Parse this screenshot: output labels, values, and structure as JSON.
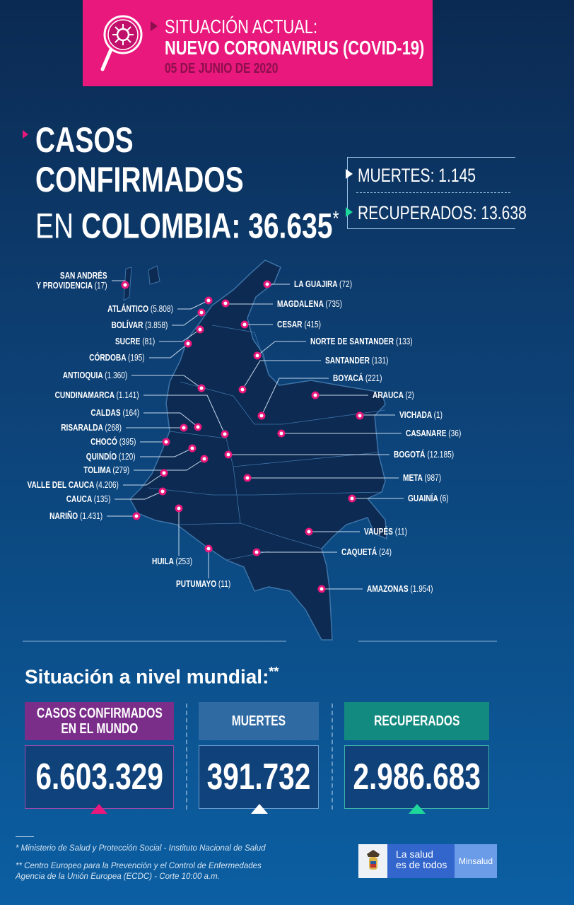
{
  "header": {
    "line1": "SITUACIÓN ACTUAL:",
    "line2": "NUEVO CORONAVIRUS (COVID-19)",
    "date": "05 DE JUNIO DE 2020",
    "icon": "virus-magnifier-icon",
    "color": "#e8187c"
  },
  "title": {
    "line1": "CASOS",
    "line2": "CONFIRMADOS",
    "line3_prefix": "EN",
    "line3_bold": "COLOMBIA:",
    "total": "36.635",
    "asterisk": "*"
  },
  "national": {
    "deaths_label": "MUERTES: 1.145",
    "recovered_label": "RECUPERADOS: 13.638"
  },
  "departments": [
    {
      "name": "SAN ANDRÉS",
      "name2": "Y PROVIDENCIA",
      "cases": "(17)"
    },
    {
      "name": "ATLÁNTICO",
      "cases": "(5.808)"
    },
    {
      "name": "BOLÍVAR",
      "cases": "(3.858)"
    },
    {
      "name": "SUCRE",
      "cases": "(81)"
    },
    {
      "name": "CÓRDOBA",
      "cases": "(195)"
    },
    {
      "name": "ANTIOQUIA",
      "cases": "(1.360)"
    },
    {
      "name": "CUNDINAMARCA",
      "cases": "(1.141)"
    },
    {
      "name": "CALDAS",
      "cases": "(164)"
    },
    {
      "name": "RISARALDA",
      "cases": "(268)"
    },
    {
      "name": "CHOCÓ",
      "cases": "(395)"
    },
    {
      "name": "QUINDÍO",
      "cases": "(120)"
    },
    {
      "name": "TOLIMA",
      "cases": "(279)"
    },
    {
      "name": "VALLE DEL CAUCA",
      "cases": "(4.206)"
    },
    {
      "name": "CAUCA",
      "cases": "(135)"
    },
    {
      "name": "NARIÑO",
      "cases": "(1.431)"
    },
    {
      "name": "HUILA",
      "cases": "(253)"
    },
    {
      "name": "PUTUMAYO",
      "cases": "(11)"
    },
    {
      "name": "LA GUAJIRA",
      "cases": "(72)"
    },
    {
      "name": "MAGDALENA",
      "cases": "(735)"
    },
    {
      "name": "CESAR",
      "cases": "(415)"
    },
    {
      "name": "NORTE DE SANTANDER",
      "cases": "(133)"
    },
    {
      "name": "SANTANDER",
      "cases": "(131)"
    },
    {
      "name": "BOYACÁ",
      "cases": "(221)"
    },
    {
      "name": "ARAUCA",
      "cases": "(2)"
    },
    {
      "name": "VICHADA",
      "cases": "(1)"
    },
    {
      "name": "CASANARE",
      "cases": "(36)"
    },
    {
      "name": "BOGOTÁ",
      "cases": "(12.185)"
    },
    {
      "name": "META",
      "cases": "(987)"
    },
    {
      "name": "GUAINÍA",
      "cases": "(6)"
    },
    {
      "name": "VAUPÉS",
      "cases": "(11)"
    },
    {
      "name": "CAQUETÁ",
      "cases": "(24)"
    },
    {
      "name": "AMAZONAS",
      "cases": "(1.954)"
    }
  ],
  "world": {
    "title": "Situación a nivel mundial:",
    "asterisks": "**",
    "cases": {
      "label1": "CASOS CONFIRMADOS",
      "label2": "EN EL MUNDO",
      "value": "6.603.329",
      "color": "#7b2d8a"
    },
    "deaths": {
      "label": "MUERTES",
      "value": "391.732",
      "color": "#2f6aa3"
    },
    "recovered": {
      "label": "RECUPERADOS",
      "value": "2.986.683",
      "color": "#138a80"
    }
  },
  "footer": {
    "note1": "* Ministerio de Salud y Protección Social - Instituto Nacional de Salud",
    "note2": "** Centro Europeo para la Prevención y el Control de Enfermedades",
    "note3": "Agencia de la Unión Europea (ECDC) - Corte 10:00 a.m.",
    "logo_text1": "La salud",
    "logo_text2": "es de todos",
    "logo_brand": "Minsalud"
  }
}
